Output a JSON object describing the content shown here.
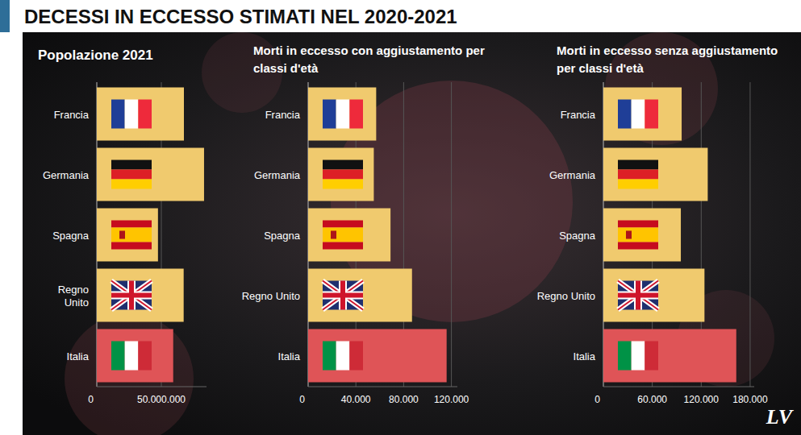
{
  "title": "DECESSI IN ECCESSO STIMATI NEL 2020-2021",
  "logo": "LV",
  "chart_data": [
    {
      "type": "bar",
      "orientation": "horizontal",
      "title": "Popolazione 2021",
      "categories": [
        "Francia",
        "Germania",
        "Spagna",
        "Regno Unito",
        "Italia"
      ],
      "values": [
        67500000,
        83100000,
        47400000,
        67300000,
        59200000
      ],
      "colors": [
        "#f0ca6e",
        "#f0ca6e",
        "#f0ca6e",
        "#f0ca6e",
        "#df5457"
      ],
      "xlim": [
        0,
        85000000
      ],
      "xticks": [
        0,
        {
          "value": 50000000,
          "label": "50.000.000"
        }
      ],
      "grid": true
    },
    {
      "type": "bar",
      "orientation": "horizontal",
      "title": "Morti in eccesso con aggiustamento per classi d'età",
      "categories": [
        "Francia",
        "Germania",
        "Spagna",
        "Regno Unito",
        "Italia"
      ],
      "values": [
        57000,
        55000,
        69000,
        87000,
        116000
      ],
      "colors": [
        "#f0ca6e",
        "#f0ca6e",
        "#f0ca6e",
        "#f0ca6e",
        "#df5457"
      ],
      "xlim": [
        0,
        125000
      ],
      "xticks": [
        0,
        {
          "value": 40000,
          "label": "40.000"
        },
        {
          "value": 80000,
          "label": "80.000"
        },
        {
          "value": 120000,
          "label": "120.000"
        }
      ],
      "grid": true
    },
    {
      "type": "bar",
      "orientation": "horizontal",
      "title": "Morti in eccesso senza aggiustamento per classi d'età",
      "categories": [
        "Francia",
        "Germania",
        "Spagna",
        "Regno Unito",
        "Italia"
      ],
      "values": [
        96000,
        128000,
        95000,
        124000,
        163000
      ],
      "colors": [
        "#f0ca6e",
        "#f0ca6e",
        "#f0ca6e",
        "#f0ca6e",
        "#df5457"
      ],
      "xlim": [
        0,
        185000
      ],
      "xticks": [
        0,
        {
          "value": 60000,
          "label": "60.000"
        },
        {
          "value": 120000,
          "label": "120.000"
        },
        {
          "value": 180000,
          "label": "180.000"
        }
      ],
      "grid": true
    }
  ]
}
